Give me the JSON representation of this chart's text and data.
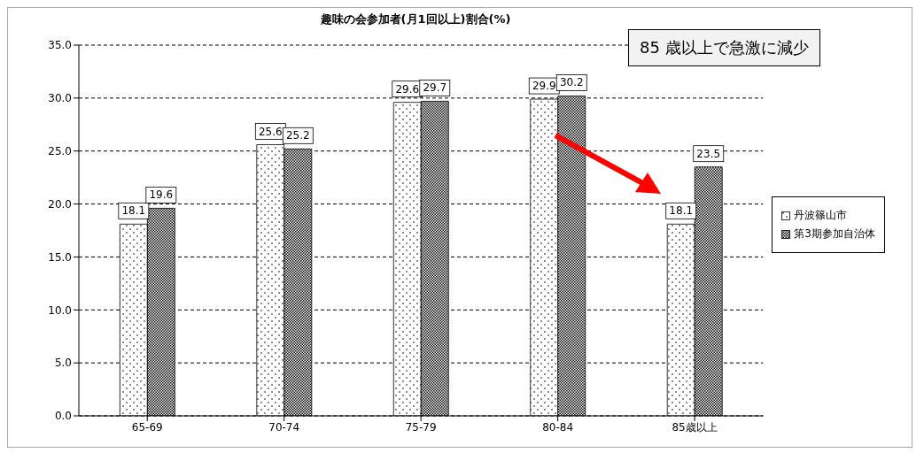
{
  "chart_data": {
    "type": "bar",
    "title": "趣味の会参加者(月1回以上)割合(%)",
    "categories": [
      "65-69",
      "70-74",
      "75-79",
      "80-84",
      "85歳以上"
    ],
    "series": [
      {
        "name": "丹波篠山市",
        "color": "#000000",
        "values": [
          18.1,
          25.6,
          29.6,
          29.9,
          18.1
        ]
      },
      {
        "name": "第3期参加自治体",
        "color": "#000000",
        "values": [
          19.6,
          25.2,
          29.7,
          30.2,
          23.5
        ]
      }
    ],
    "ylim": [
      0,
      35
    ],
    "yticks": [
      {
        "value": 0,
        "label": "0.0"
      },
      {
        "value": 5,
        "label": "5.0"
      },
      {
        "value": 10,
        "label": "10.0"
      },
      {
        "value": 15,
        "label": "15.0"
      },
      {
        "value": 20,
        "label": "20.0"
      },
      {
        "value": 25,
        "label": "25.0"
      },
      {
        "value": 30,
        "label": "30.0"
      },
      {
        "value": 35,
        "label": "35.0"
      }
    ],
    "grid": "y",
    "legend": "right",
    "data_labels": true,
    "annotations": [
      "85 歳以上で急激に減少"
    ]
  }
}
